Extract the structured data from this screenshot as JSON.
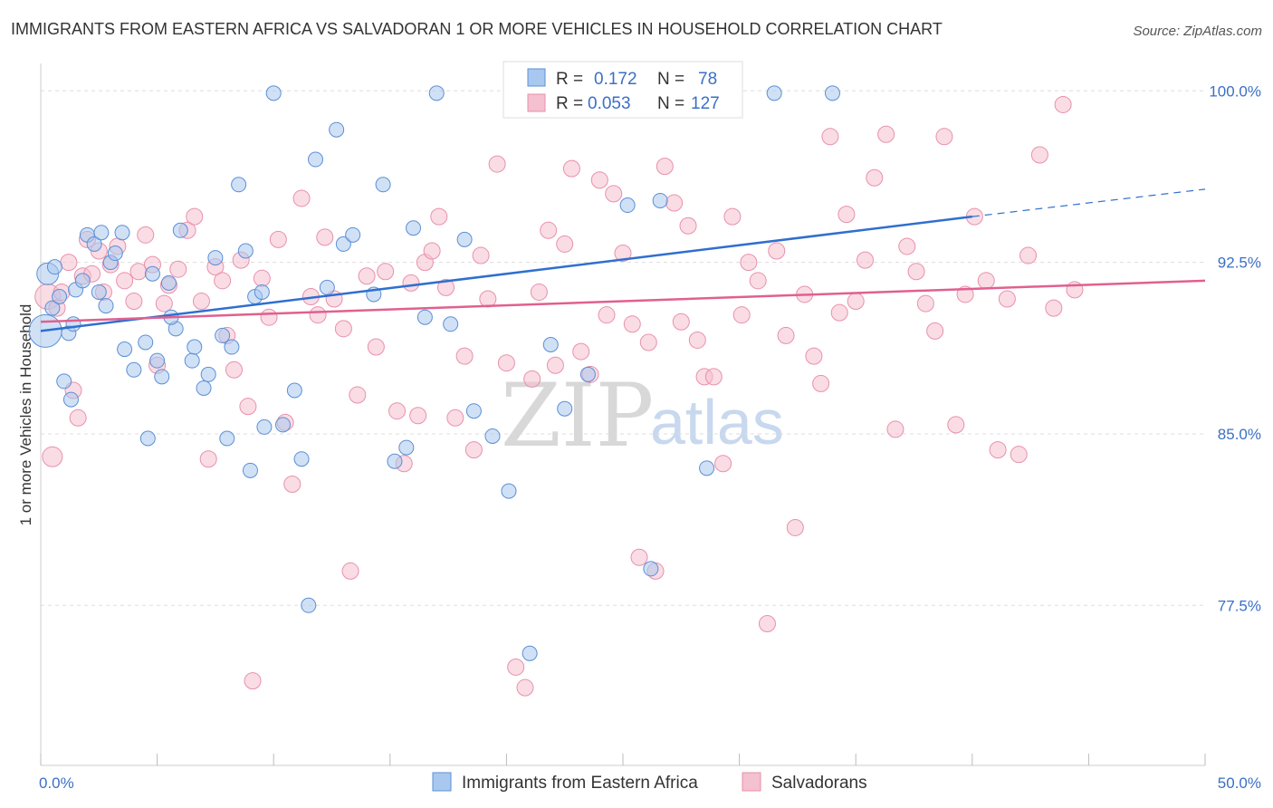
{
  "title": "IMMIGRANTS FROM EASTERN AFRICA VS SALVADORAN 1 OR MORE VEHICLES IN HOUSEHOLD CORRELATION CHART",
  "source": "Source: ZipAtlas.com",
  "watermark": {
    "part1": "ZIP",
    "part2": "atlas"
  },
  "legend": {
    "rows": [
      {
        "r_label": "R =",
        "r_value": "0.172",
        "n_label": "N =",
        "n_value": "78"
      },
      {
        "r_label": "R =",
        "r_value": "0.053",
        "n_label": "N =",
        "n_value": "127"
      }
    ]
  },
  "colors": {
    "blue_fill": "#a9c8ef",
    "blue_stroke": "#5b8fd6",
    "blue_line": "#2f6fcf",
    "pink_fill": "#f5c0d0",
    "pink_stroke": "#e891ab",
    "pink_line": "#e0608f",
    "grid": "#dddddd",
    "axis_text": "#3b6fc6"
  },
  "chart_data": {
    "type": "scatter",
    "title": "IMMIGRANTS FROM EASTERN AFRICA VS SALVADORAN 1 OR MORE VEHICLES IN HOUSEHOLD CORRELATION CHART",
    "xlabel": "",
    "ylabel": "1 or more Vehicles in Household",
    "xlim": [
      0,
      50
    ],
    "ylim": [
      70.5,
      101.2
    ],
    "x_tick_labels": [
      "0.0%",
      "50.0%"
    ],
    "y_ticks": [
      {
        "value": 100.0,
        "label": "100.0%"
      },
      {
        "value": 92.5,
        "label": "92.5%"
      },
      {
        "value": 85.0,
        "label": "85.0%"
      },
      {
        "value": 77.5,
        "label": "77.5%"
      }
    ],
    "grid": true,
    "legend_position": "top-center",
    "series": [
      {
        "name": "Immigrants from Eastern Africa",
        "color": "#a9c8ef",
        "r": 0.172,
        "n": 78,
        "trend": {
          "x": [
            0,
            40
          ],
          "y": [
            89.5,
            94.5
          ],
          "dashed_to": [
            50,
            95.7
          ]
        },
        "points": [
          [
            0.2,
            89.5,
            18
          ],
          [
            0.3,
            92.0,
            12
          ],
          [
            0.5,
            90.5,
            8
          ],
          [
            0.6,
            92.3,
            8
          ],
          [
            0.8,
            91.0,
            8
          ],
          [
            1.0,
            87.3,
            8
          ],
          [
            1.2,
            89.4,
            8
          ],
          [
            1.3,
            86.5,
            8
          ],
          [
            1.5,
            91.3,
            8
          ],
          [
            1.8,
            91.7,
            8
          ],
          [
            2.0,
            93.7,
            8
          ],
          [
            2.3,
            93.3,
            8
          ],
          [
            2.5,
            91.2,
            8
          ],
          [
            2.6,
            93.8,
            8
          ],
          [
            2.8,
            90.6,
            8
          ],
          [
            3.0,
            92.5,
            8
          ],
          [
            3.2,
            92.9,
            8
          ],
          [
            3.5,
            93.8,
            8
          ],
          [
            3.6,
            88.7,
            8
          ],
          [
            4.0,
            87.8,
            8
          ],
          [
            4.5,
            89.0,
            8
          ],
          [
            4.8,
            92.0,
            8
          ],
          [
            5.0,
            88.2,
            8
          ],
          [
            5.2,
            87.5,
            8
          ],
          [
            5.5,
            91.6,
            8
          ],
          [
            5.8,
            89.6,
            8
          ],
          [
            6.0,
            93.9,
            8
          ],
          [
            6.5,
            88.2,
            8
          ],
          [
            6.6,
            88.8,
            8
          ],
          [
            7.0,
            87.0,
            8
          ],
          [
            7.2,
            87.6,
            8
          ],
          [
            7.5,
            92.7,
            8
          ],
          [
            7.8,
            89.3,
            8
          ],
          [
            8.0,
            84.8,
            8
          ],
          [
            8.2,
            88.8,
            8
          ],
          [
            8.5,
            95.9,
            8
          ],
          [
            8.8,
            93.0,
            8
          ],
          [
            9.2,
            91.0,
            8
          ],
          [
            9.5,
            91.2,
            8
          ],
          [
            9.0,
            83.4,
            8
          ],
          [
            9.6,
            85.3,
            8
          ],
          [
            10.0,
            99.9,
            8
          ],
          [
            10.4,
            85.4,
            8
          ],
          [
            10.9,
            86.9,
            8
          ],
          [
            11.2,
            83.9,
            8
          ],
          [
            11.5,
            77.5,
            8
          ],
          [
            11.8,
            97.0,
            8
          ],
          [
            12.3,
            91.4,
            8
          ],
          [
            12.7,
            98.3,
            8
          ],
          [
            13.0,
            93.3,
            8
          ],
          [
            13.4,
            93.7,
            8
          ],
          [
            14.3,
            91.1,
            8
          ],
          [
            14.7,
            95.9,
            8
          ],
          [
            15.2,
            83.8,
            8
          ],
          [
            15.7,
            84.4,
            8
          ],
          [
            16.0,
            94.0,
            8
          ],
          [
            16.5,
            90.1,
            8
          ],
          [
            17.0,
            99.9,
            8
          ],
          [
            17.6,
            89.8,
            8
          ],
          [
            18.2,
            93.5,
            8
          ],
          [
            18.6,
            86.0,
            8
          ],
          [
            19.4,
            84.9,
            8
          ],
          [
            20.1,
            82.5,
            8
          ],
          [
            21.0,
            75.4,
            8
          ],
          [
            21.9,
            88.9,
            8
          ],
          [
            22.5,
            86.1,
            8
          ],
          [
            23.5,
            87.6,
            8
          ],
          [
            24.8,
            99.9,
            8
          ],
          [
            25.2,
            95.0,
            8
          ],
          [
            26.2,
            79.1,
            8
          ],
          [
            26.6,
            95.2,
            8
          ],
          [
            27.2,
            99.9,
            8
          ],
          [
            28.6,
            83.5,
            8
          ],
          [
            31.5,
            99.9,
            8
          ],
          [
            34.0,
            99.9,
            8
          ],
          [
            4.6,
            84.8,
            8
          ],
          [
            1.4,
            89.8,
            8
          ],
          [
            5.6,
            90.1,
            8
          ]
        ]
      },
      {
        "name": "Salvadorans",
        "color": "#f5c0d0",
        "r": 0.053,
        "n": 127,
        "trend": {
          "x": [
            0,
            50
          ],
          "y": [
            89.9,
            91.7
          ]
        },
        "points": [
          [
            0.3,
            91.0,
            14
          ],
          [
            0.5,
            84.0,
            11
          ],
          [
            0.7,
            90.5,
            9
          ],
          [
            0.9,
            91.2,
            9
          ],
          [
            1.2,
            92.5,
            9
          ],
          [
            1.4,
            86.9,
            9
          ],
          [
            1.6,
            85.7,
            9
          ],
          [
            1.8,
            91.9,
            9
          ],
          [
            2.0,
            93.5,
            9
          ],
          [
            2.2,
            92.0,
            9
          ],
          [
            2.5,
            93.0,
            9
          ],
          [
            2.7,
            91.2,
            9
          ],
          [
            3.0,
            92.4,
            9
          ],
          [
            3.3,
            93.2,
            9
          ],
          [
            3.6,
            91.7,
            9
          ],
          [
            4.0,
            90.8,
            9
          ],
          [
            4.2,
            92.1,
            9
          ],
          [
            4.5,
            93.7,
            9
          ],
          [
            4.8,
            92.4,
            9
          ],
          [
            5.0,
            88.0,
            9
          ],
          [
            5.3,
            90.7,
            9
          ],
          [
            5.5,
            91.5,
            9
          ],
          [
            5.9,
            92.2,
            9
          ],
          [
            6.3,
            93.9,
            9
          ],
          [
            6.6,
            94.5,
            9
          ],
          [
            6.9,
            90.8,
            9
          ],
          [
            7.2,
            83.9,
            9
          ],
          [
            7.5,
            92.3,
            9
          ],
          [
            7.8,
            91.7,
            9
          ],
          [
            8.0,
            89.3,
            9
          ],
          [
            8.3,
            87.8,
            9
          ],
          [
            8.6,
            92.6,
            9
          ],
          [
            8.9,
            86.2,
            9
          ],
          [
            9.1,
            74.2,
            9
          ],
          [
            9.5,
            91.8,
            9
          ],
          [
            9.8,
            90.1,
            9
          ],
          [
            10.2,
            93.5,
            9
          ],
          [
            10.5,
            85.5,
            9
          ],
          [
            10.8,
            82.8,
            9
          ],
          [
            11.2,
            95.3,
            9
          ],
          [
            11.6,
            91.0,
            9
          ],
          [
            11.9,
            90.2,
            9
          ],
          [
            12.2,
            93.6,
            9
          ],
          [
            12.6,
            90.9,
            9
          ],
          [
            13.0,
            89.6,
            9
          ],
          [
            13.3,
            79.0,
            9
          ],
          [
            13.6,
            86.7,
            9
          ],
          [
            14.0,
            91.9,
            9
          ],
          [
            14.4,
            88.8,
            9
          ],
          [
            14.8,
            92.1,
            9
          ],
          [
            15.3,
            86.0,
            9
          ],
          [
            15.6,
            83.7,
            9
          ],
          [
            15.9,
            91.6,
            9
          ],
          [
            16.2,
            85.8,
            9
          ],
          [
            16.5,
            92.5,
            9
          ],
          [
            16.8,
            93.0,
            9
          ],
          [
            17.1,
            94.5,
            9
          ],
          [
            17.4,
            91.4,
            9
          ],
          [
            17.8,
            85.7,
            9
          ],
          [
            18.2,
            88.4,
            9
          ],
          [
            18.6,
            84.3,
            9
          ],
          [
            18.9,
            92.8,
            9
          ],
          [
            19.2,
            90.9,
            9
          ],
          [
            19.6,
            96.8,
            9
          ],
          [
            20.0,
            88.1,
            9
          ],
          [
            20.4,
            74.8,
            9
          ],
          [
            20.8,
            73.9,
            9
          ],
          [
            21.1,
            87.4,
            9
          ],
          [
            21.4,
            91.2,
            9
          ],
          [
            21.8,
            93.9,
            9
          ],
          [
            22.1,
            88.0,
            9
          ],
          [
            22.5,
            93.3,
            9
          ],
          [
            22.8,
            96.6,
            9
          ],
          [
            23.2,
            88.6,
            9
          ],
          [
            23.6,
            87.6,
            9
          ],
          [
            24.0,
            96.1,
            9
          ],
          [
            24.3,
            90.2,
            9
          ],
          [
            24.6,
            95.5,
            9
          ],
          [
            25.0,
            92.9,
            9
          ],
          [
            25.4,
            89.8,
            9
          ],
          [
            25.7,
            79.6,
            9
          ],
          [
            26.1,
            89.0,
            9
          ],
          [
            26.4,
            79.0,
            9
          ],
          [
            26.8,
            96.7,
            9
          ],
          [
            27.2,
            95.1,
            9
          ],
          [
            27.5,
            89.9,
            9
          ],
          [
            27.8,
            94.1,
            9
          ],
          [
            28.2,
            89.1,
            9
          ],
          [
            28.5,
            87.5,
            9
          ],
          [
            28.9,
            87.5,
            9
          ],
          [
            29.3,
            83.7,
            9
          ],
          [
            29.7,
            94.5,
            9
          ],
          [
            30.1,
            90.2,
            9
          ],
          [
            30.4,
            92.5,
            9
          ],
          [
            30.8,
            91.7,
            9
          ],
          [
            31.2,
            76.7,
            9
          ],
          [
            31.6,
            93.0,
            9
          ],
          [
            32.0,
            89.3,
            9
          ],
          [
            32.4,
            80.9,
            9
          ],
          [
            32.8,
            91.1,
            9
          ],
          [
            33.2,
            88.4,
            9
          ],
          [
            33.5,
            87.2,
            9
          ],
          [
            33.9,
            98.0,
            9
          ],
          [
            34.3,
            90.3,
            9
          ],
          [
            34.6,
            94.6,
            9
          ],
          [
            35.0,
            90.8,
            9
          ],
          [
            35.4,
            92.6,
            9
          ],
          [
            35.8,
            96.2,
            9
          ],
          [
            36.3,
            98.1,
            9
          ],
          [
            36.7,
            85.2,
            9
          ],
          [
            37.2,
            93.2,
            9
          ],
          [
            37.6,
            92.1,
            9
          ],
          [
            38.0,
            90.7,
            9
          ],
          [
            38.4,
            89.5,
            9
          ],
          [
            38.8,
            98.0,
            9
          ],
          [
            39.3,
            85.4,
            9
          ],
          [
            39.7,
            91.1,
            9
          ],
          [
            40.1,
            94.5,
            9
          ],
          [
            40.6,
            91.7,
            9
          ],
          [
            41.1,
            84.3,
            9
          ],
          [
            41.5,
            90.9,
            9
          ],
          [
            42.0,
            84.1,
            9
          ],
          [
            42.4,
            92.8,
            9
          ],
          [
            42.9,
            97.2,
            9
          ],
          [
            43.5,
            90.5,
            9
          ],
          [
            43.9,
            99.4,
            9
          ],
          [
            44.4,
            91.3,
            9
          ]
        ]
      }
    ]
  },
  "bottom_legend": {
    "items": [
      {
        "label": "Immigrants from Eastern Africa"
      },
      {
        "label": "Salvadorans"
      }
    ]
  }
}
